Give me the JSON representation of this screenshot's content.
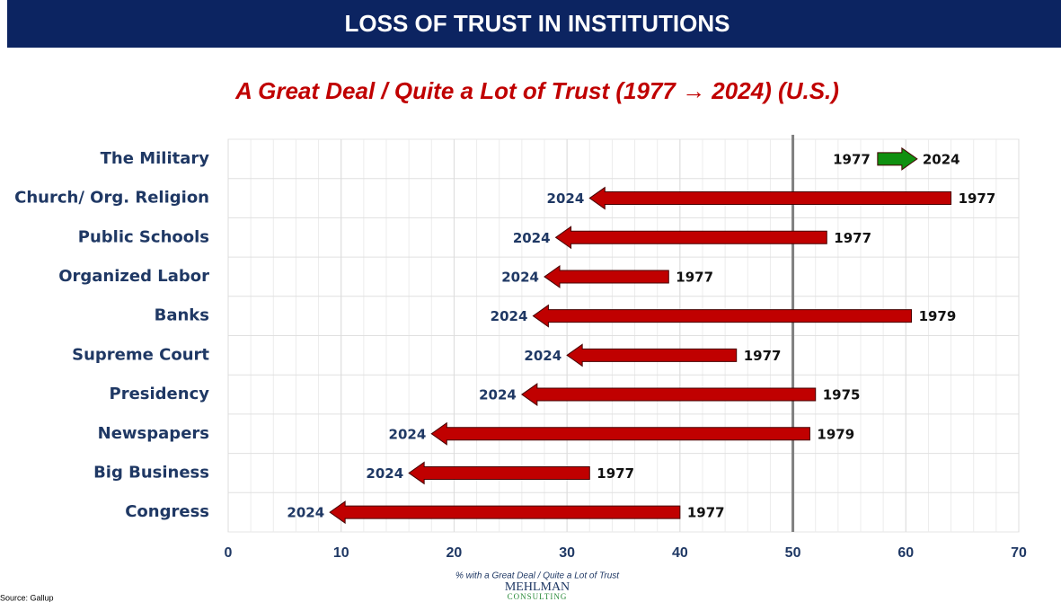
{
  "chart_data": {
    "type": "arrow",
    "header": "LOSS OF TRUST IN INSTITUTIONS",
    "title": "A Great Deal / Quite a Lot of Trust (1977 → 2024) (U.S.)",
    "x_label": "% with a Great Deal / Quite a Lot of Trust",
    "source": "Source: Gallup",
    "logo": [
      "MEHLMAN",
      "CONSULTING"
    ],
    "categories": [
      "The Military",
      "Church/ Org. Religion",
      "Public Schools",
      "Organized Labor",
      "Banks",
      "Supreme Court",
      "Presidency",
      "Newspapers",
      "Big Business",
      "Congress"
    ],
    "start": [
      57.5,
      64,
      53,
      39,
      60.5,
      45,
      52,
      51.5,
      32,
      40
    ],
    "end": [
      61,
      32,
      29,
      28,
      27,
      30,
      26,
      18,
      16,
      9
    ],
    "start_labels": [
      "1977",
      "1977",
      "1977",
      "1977",
      "1979",
      "1977",
      "1975",
      "1979",
      "1977",
      "1977"
    ],
    "end_labels": [
      "2024",
      "2024",
      "2024",
      "2024",
      "2024",
      "2024",
      "2024",
      "2024",
      "2024",
      "2024"
    ],
    "colors": {
      "increase": "#109010",
      "decrease": "#c00000"
    },
    "xlim": [
      0,
      70
    ],
    "xticks": [
      0,
      10,
      20,
      30,
      40,
      50,
      60,
      70
    ],
    "minor_grid_step": 2,
    "reference_line": 50,
    "grid": true
  }
}
